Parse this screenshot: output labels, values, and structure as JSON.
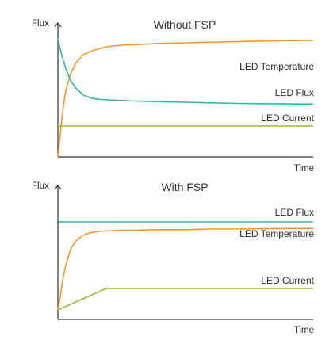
{
  "chart_data": [
    {
      "type": "line",
      "title": "Without FSP",
      "xlabel": "Time",
      "ylabel": "Flux",
      "xlim": [
        0,
        100
      ],
      "ylim": [
        0,
        100
      ],
      "grid": false,
      "series": [
        {
          "name": "LED Temperature",
          "color": "#f2962e",
          "x": [
            0,
            1,
            2,
            3,
            5,
            7,
            10,
            13,
            16,
            20,
            25,
            30,
            40,
            50,
            60,
            70,
            80,
            90,
            100
          ],
          "y": [
            0,
            20,
            40,
            55,
            70,
            79,
            86,
            89,
            91,
            93,
            94,
            94.5,
            95.5,
            96,
            96.5,
            97,
            97.5,
            97.8,
            98
          ]
        },
        {
          "name": "LED Flux",
          "color": "#33b5b0",
          "x": [
            0,
            1,
            2,
            3,
            5,
            7,
            10,
            13,
            16,
            20,
            25,
            30,
            40,
            50,
            60,
            70,
            80,
            90,
            100
          ],
          "y": [
            100,
            90,
            82,
            75,
            64,
            58,
            52,
            49.5,
            48.5,
            48,
            47.5,
            47,
            46.5,
            46,
            45.5,
            45,
            44.8,
            44.6,
            44.5
          ]
        },
        {
          "name": "LED Current",
          "color": "#9ab83c",
          "x": [
            0,
            100
          ],
          "y": [
            26,
            26
          ]
        }
      ]
    },
    {
      "type": "line",
      "title": "With FSP",
      "xlabel": "Time",
      "ylabel": "Flux",
      "xlim": [
        0,
        100
      ],
      "ylim": [
        0,
        100
      ],
      "grid": false,
      "series": [
        {
          "name": "LED Flux",
          "color": "#33b5b0",
          "x": [
            0,
            100
          ],
          "y": [
            82,
            82
          ]
        },
        {
          "name": "LED Temperature",
          "color": "#f2962e",
          "x": [
            0,
            1,
            2,
            3,
            5,
            7,
            10,
            13,
            16,
            20,
            25,
            30,
            40,
            50,
            60,
            70,
            80,
            90,
            100
          ],
          "y": [
            8,
            20,
            34,
            45,
            59,
            66,
            71,
            73,
            74,
            74.5,
            75,
            75,
            75.5,
            75.5,
            76,
            76,
            76.3,
            76.5,
            76.5
          ]
        },
        {
          "name": "LED Current",
          "color": "#9ab83c",
          "x": [
            0,
            19,
            100
          ],
          "y": [
            8,
            26,
            26
          ]
        }
      ]
    }
  ]
}
